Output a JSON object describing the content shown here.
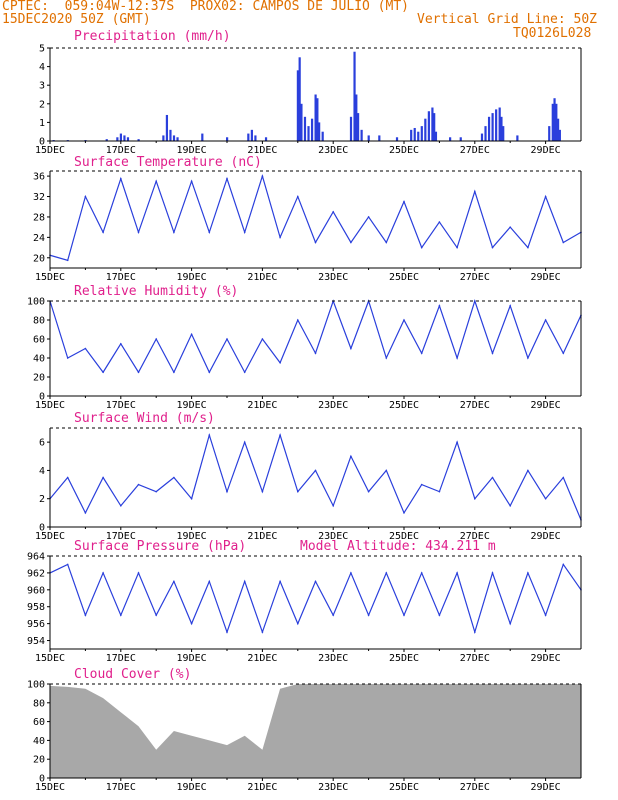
{
  "header": {
    "line1_left": "CPTEC:  059:04W-12:37S  PROX02: CAMPOS DE JULIO (MT)",
    "line2_left": "15DEC2020 50Z (GMT)",
    "line2_right": "Vertical Grid Line: 50Z",
    "line3_right": "TQ0126L028"
  },
  "colors": {
    "header": "#e07000",
    "title": "#e0208c",
    "series": "#2a3fdc",
    "cloud": "#a8a8a8"
  },
  "x_ticks": [
    "15DEC",
    "17DEC",
    "19DEC",
    "21DEC",
    "23DEC",
    "25DEC",
    "27DEC",
    "29DEC"
  ],
  "x_tick_days": [
    0,
    2,
    4,
    6,
    8,
    10,
    12,
    14
  ],
  "x_range_days": [
    0,
    15
  ],
  "extra_label": "Model Altitude: 434.211  m",
  "chart_data": [
    {
      "id": "precip",
      "type": "bar",
      "title": "Precipitation (mm/h)",
      "ylim": [
        0,
        5
      ],
      "yticks": [
        0,
        1,
        2,
        3,
        4,
        5
      ],
      "values": [
        [
          0.1,
          0.05
        ],
        [
          0.5,
          0.05
        ],
        [
          1.0,
          0.05
        ],
        [
          1.6,
          0.1
        ],
        [
          1.9,
          0.2
        ],
        [
          2.0,
          0.4
        ],
        [
          2.1,
          0.3
        ],
        [
          2.2,
          0.2
        ],
        [
          2.5,
          0.1
        ],
        [
          3.2,
          0.3
        ],
        [
          3.3,
          1.4
        ],
        [
          3.4,
          0.6
        ],
        [
          3.5,
          0.3
        ],
        [
          3.6,
          0.2
        ],
        [
          4.3,
          0.4
        ],
        [
          5.0,
          0.2
        ],
        [
          5.6,
          0.4
        ],
        [
          5.7,
          0.6
        ],
        [
          5.8,
          0.3
        ],
        [
          6.1,
          0.2
        ],
        [
          7.0,
          3.8
        ],
        [
          7.05,
          4.5
        ],
        [
          7.1,
          2.0
        ],
        [
          7.2,
          1.3
        ],
        [
          7.3,
          0.8
        ],
        [
          7.4,
          1.2
        ],
        [
          7.5,
          2.5
        ],
        [
          7.55,
          2.3
        ],
        [
          7.6,
          1.0
        ],
        [
          7.7,
          0.5
        ],
        [
          8.5,
          1.3
        ],
        [
          8.6,
          4.8
        ],
        [
          8.65,
          2.5
        ],
        [
          8.7,
          1.5
        ],
        [
          8.8,
          0.6
        ],
        [
          9.0,
          0.3
        ],
        [
          9.3,
          0.3
        ],
        [
          9.8,
          0.2
        ],
        [
          10.2,
          0.6
        ],
        [
          10.3,
          0.7
        ],
        [
          10.4,
          0.5
        ],
        [
          10.5,
          0.8
        ],
        [
          10.6,
          1.2
        ],
        [
          10.7,
          1.6
        ],
        [
          10.8,
          1.8
        ],
        [
          10.85,
          1.5
        ],
        [
          10.9,
          0.5
        ],
        [
          11.3,
          0.2
        ],
        [
          11.6,
          0.2
        ],
        [
          12.2,
          0.4
        ],
        [
          12.3,
          0.8
        ],
        [
          12.4,
          1.3
        ],
        [
          12.5,
          1.5
        ],
        [
          12.6,
          1.7
        ],
        [
          12.7,
          1.8
        ],
        [
          12.75,
          1.3
        ],
        [
          12.8,
          0.8
        ],
        [
          13.2,
          0.3
        ],
        [
          14.1,
          0.8
        ],
        [
          14.2,
          2.0
        ],
        [
          14.25,
          2.3
        ],
        [
          14.3,
          2.0
        ],
        [
          14.35,
          1.2
        ],
        [
          14.4,
          0.6
        ]
      ]
    },
    {
      "id": "temp",
      "type": "line",
      "title": "Surface Temperature (nC)",
      "ylim": [
        18,
        37
      ],
      "yticks": [
        20,
        24,
        28,
        32,
        36
      ],
      "x": [
        0,
        0.5,
        1.0,
        1.5,
        2.0,
        2.5,
        3.0,
        3.5,
        4.0,
        4.5,
        5.0,
        5.5,
        6.0,
        6.5,
        7.0,
        7.5,
        8.0,
        8.5,
        9.0,
        9.5,
        10.0,
        10.5,
        11.0,
        11.5,
        12.0,
        12.5,
        13.0,
        13.5,
        14.0,
        14.5,
        15.0
      ],
      "values": [
        20.5,
        19.5,
        32,
        25,
        35.5,
        25,
        35,
        25,
        35,
        25,
        35.5,
        25,
        36,
        24,
        32,
        23,
        29,
        23,
        28,
        23,
        31,
        22,
        27,
        22,
        33,
        22,
        26,
        22,
        32,
        23,
        25
      ]
    },
    {
      "id": "rh",
      "type": "line",
      "title": "Relative Humidity (%)",
      "ylim": [
        0,
        100
      ],
      "yticks": [
        0,
        20,
        40,
        60,
        80,
        100
      ],
      "x": [
        0,
        0.5,
        1.0,
        1.5,
        2.0,
        2.5,
        3.0,
        3.5,
        4.0,
        4.5,
        5.0,
        5.5,
        6.0,
        6.5,
        7.0,
        7.5,
        8.0,
        8.5,
        9.0,
        9.5,
        10.0,
        10.5,
        11.0,
        11.5,
        12.0,
        12.5,
        13.0,
        13.5,
        14.0,
        14.5,
        15.0
      ],
      "values": [
        100,
        40,
        50,
        25,
        55,
        25,
        60,
        25,
        65,
        25,
        60,
        25,
        60,
        35,
        80,
        45,
        100,
        50,
        100,
        40,
        80,
        45,
        95,
        40,
        100,
        45,
        95,
        40,
        80,
        45,
        85
      ]
    },
    {
      "id": "wind",
      "type": "line",
      "title": "Surface Wind (m/s)",
      "ylim": [
        0,
        7
      ],
      "yticks": [
        0,
        2,
        4,
        6
      ],
      "x": [
        0,
        0.5,
        1.0,
        1.5,
        2.0,
        2.5,
        3.0,
        3.5,
        4.0,
        4.5,
        5.0,
        5.5,
        6.0,
        6.5,
        7.0,
        7.5,
        8.0,
        8.5,
        9.0,
        9.5,
        10.0,
        10.5,
        11.0,
        11.5,
        12.0,
        12.5,
        13.0,
        13.5,
        14.0,
        14.5,
        15.0
      ],
      "values": [
        2.0,
        3.5,
        1.0,
        3.5,
        1.5,
        3.0,
        2.5,
        3.5,
        2.0,
        6.5,
        2.5,
        6.0,
        2.5,
        6.5,
        2.5,
        4.0,
        1.5,
        5.0,
        2.5,
        4.0,
        1.0,
        3.0,
        2.5,
        6.0,
        2.0,
        3.5,
        1.5,
        4.0,
        2.0,
        3.5,
        0.5
      ]
    },
    {
      "id": "pres",
      "type": "line",
      "title": "Surface Pressure (hPa)",
      "ylim": [
        953,
        964
      ],
      "yticks": [
        954,
        956,
        958,
        960,
        962,
        964
      ],
      "x": [
        0,
        0.5,
        1.0,
        1.5,
        2.0,
        2.5,
        3.0,
        3.5,
        4.0,
        4.5,
        5.0,
        5.5,
        6.0,
        6.5,
        7.0,
        7.5,
        8.0,
        8.5,
        9.0,
        9.5,
        10.0,
        10.5,
        11.0,
        11.5,
        12.0,
        12.5,
        13.0,
        13.5,
        14.0,
        14.5,
        15.0
      ],
      "values": [
        962,
        963,
        957,
        962,
        957,
        962,
        957,
        961,
        956,
        961,
        955,
        961,
        955,
        961,
        956,
        961,
        957,
        962,
        957,
        962,
        957,
        962,
        957,
        962,
        955,
        962,
        956,
        962,
        957,
        963,
        960
      ]
    },
    {
      "id": "cloud",
      "type": "area",
      "title": "Cloud Cover (%)",
      "ylim": [
        0,
        100
      ],
      "yticks": [
        0,
        20,
        40,
        60,
        80,
        100
      ],
      "x": [
        0,
        0.5,
        1.0,
        1.5,
        2.0,
        2.5,
        3.0,
        3.5,
        4.0,
        4.5,
        5.0,
        5.5,
        6.0,
        6.5,
        7.0,
        8.0,
        9.0,
        10.0,
        11.0,
        12.0,
        13.0,
        14.0,
        15.0
      ],
      "values": [
        98,
        97,
        95,
        85,
        70,
        55,
        30,
        50,
        45,
        40,
        35,
        45,
        30,
        95,
        100,
        100,
        100,
        100,
        100,
        100,
        100,
        100,
        100
      ]
    }
  ]
}
